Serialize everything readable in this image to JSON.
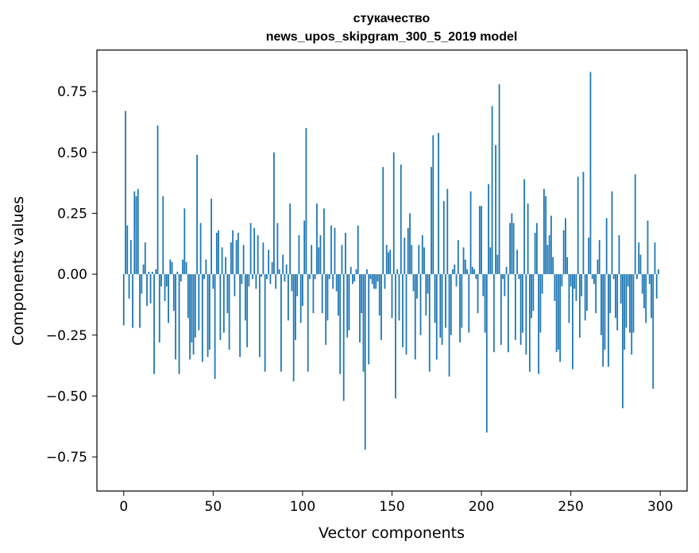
{
  "chart_data": {
    "type": "bar",
    "title": "стукачество",
    "subtitle": "news_upos_skipgram_300_5_2019 model",
    "xlabel": "Vector components",
    "ylabel": "Components values",
    "xlim": [
      -15,
      315
    ],
    "ylim": [
      -0.89,
      0.92
    ],
    "xticks": [
      0,
      50,
      100,
      150,
      200,
      250,
      300
    ],
    "yticks": [
      -0.75,
      -0.5,
      -0.25,
      0.0,
      0.25,
      0.5,
      0.75
    ],
    "xtick_labels": [
      "0",
      "50",
      "100",
      "150",
      "200",
      "250",
      "300"
    ],
    "ytick_labels": [
      "−0.75",
      "−0.50",
      "−0.25",
      "0.00",
      "0.25",
      "0.50",
      "0.75"
    ],
    "bar_color": "#1f77b4",
    "grid": false,
    "values": [
      -0.21,
      0.67,
      0.2,
      -0.1,
      0.14,
      -0.22,
      0.34,
      0.32,
      0.35,
      -0.22,
      -0.08,
      0.04,
      0.13,
      -0.13,
      0.01,
      -0.12,
      0.01,
      -0.41,
      0.02,
      0.61,
      -0.28,
      -0.05,
      0.32,
      -0.11,
      -0.05,
      -0.2,
      0.06,
      0.05,
      -0.15,
      -0.35,
      0.01,
      -0.41,
      -0.03,
      0.06,
      0.27,
      0.05,
      -0.18,
      -0.35,
      -0.28,
      -0.33,
      -0.26,
      0.49,
      -0.23,
      0.21,
      -0.36,
      -0.02,
      0.06,
      -0.34,
      -0.31,
      0.31,
      -0.06,
      -0.43,
      0.17,
      0.18,
      -0.27,
      0.11,
      -0.24,
      0.07,
      -0.16,
      -0.31,
      0.13,
      0.18,
      -0.09,
      0.14,
      0.17,
      -0.34,
      -0.04,
      0.12,
      -0.19,
      -0.3,
      -0.05,
      0.21,
      -0.02,
      0.19,
      -0.06,
      0.16,
      -0.34,
      -0.01,
      0.13,
      -0.4,
      -0.02,
      0.1,
      -0.04,
      0.05,
      0.5,
      -0.06,
      0.21,
      0.02,
      -0.4,
      0.08,
      -0.03,
      0.04,
      -0.19,
      0.29,
      -0.07,
      -0.44,
      -0.27,
      -0.09,
      0.16,
      -0.2,
      -0.13,
      0.22,
      0.6,
      -0.4,
      -0.02,
      0.12,
      -0.16,
      -0.02,
      0.29,
      0.11,
      0.16,
      -0.16,
      0.27,
      -0.29,
      -0.19,
      -0.02,
      0.2,
      -0.06,
      0.19,
      -0.07,
      -0.17,
      -0.41,
      0.12,
      -0.52,
      0.17,
      -0.26,
      -0.23,
      0.03,
      -0.04,
      -0.03,
      0.02,
      0.2,
      -0.28,
      -0.16,
      -0.4,
      -0.72,
      0.02,
      -0.37,
      -0.02,
      -0.04,
      -0.06,
      -0.06,
      -0.03,
      -0.17,
      -0.27,
      0.44,
      -0.06,
      0.12,
      0.09,
      0.1,
      -0.18,
      0.5,
      -0.51,
      0.02,
      -0.19,
      0.45,
      -0.3,
      0.15,
      -0.33,
      0.19,
      0.25,
      0.12,
      -0.07,
      -0.35,
      -0.1,
      0.12,
      -0.25,
      0.16,
      0.11,
      -0.17,
      -0.08,
      -0.4,
      0.44,
      0.57,
      -0.2,
      -0.35,
      0.58,
      -0.26,
      -0.29,
      0.3,
      -0.22,
      0.35,
      -0.42,
      -0.25,
      0.02,
      0.04,
      -0.05,
      0.14,
      -0.28,
      -0.22,
      0.11,
      0.06,
      0.02,
      -0.24,
      0.34,
      0.03,
      0.02,
      -0.02,
      -0.16,
      0.28,
      0.28,
      -0.09,
      -0.24,
      -0.65,
      0.37,
      0.11,
      0.69,
      -0.32,
      0.53,
      0.08,
      0.78,
      -0.29,
      -0.02,
      -0.09,
      0.03,
      -0.32,
      0.21,
      0.25,
      0.21,
      -0.27,
      0.1,
      -0.02,
      -0.29,
      -0.24,
      0.39,
      -0.33,
      0.29,
      -0.4,
      -0.18,
      -0.15,
      0.17,
      0.21,
      -0.41,
      -0.24,
      -0.08,
      0.35,
      0.32,
      0.12,
      0.16,
      0.24,
      0.07,
      -0.11,
      -0.32,
      -0.31,
      -0.36,
      -0.05,
      0.18,
      0.23,
      0.07,
      -0.2,
      -0.05,
      -0.39,
      -0.06,
      -0.11,
      0.4,
      -0.26,
      -0.09,
      0.42,
      -0.19,
      -0.15,
      0.15,
      0.83,
      -0.02,
      -0.04,
      -0.16,
      0.06,
      0.14,
      -0.25,
      -0.38,
      -0.31,
      0.23,
      -0.38,
      -0.16,
      0.34,
      -0.02,
      -0.18,
      -0.23,
      0.16,
      -0.12,
      -0.55,
      -0.31,
      -0.22,
      -0.05,
      -0.24,
      -0.33,
      -0.24,
      0.41,
      -0.02,
      0.13,
      0.08,
      -0.08,
      -0.14,
      -0.2,
      0.22,
      -0.04,
      -0.18,
      -0.47,
      0.13,
      -0.1,
      0.02
    ]
  }
}
